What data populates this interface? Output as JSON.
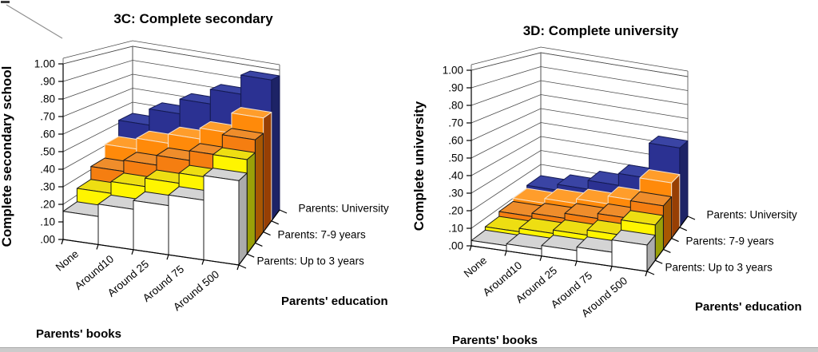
{
  "page": {
    "background": "#ffffff",
    "bottom_strip_color": "#cbcbcb"
  },
  "chart_data": [
    {
      "type": "bar",
      "variant": "3d-column",
      "title": "3C: Complete secondary",
      "ylabel": "Complete secondary school",
      "xlabel": "Parents' books",
      "depth_label": "Parents' education",
      "ylim": [
        0,
        1
      ],
      "grid": true,
      "y_tick_labels": [
        "1.00",
        ".90",
        ".80",
        ".70",
        ".60",
        ".50",
        ".40",
        ".30",
        ".20",
        ".10",
        ".00"
      ],
      "categories": [
        "None",
        "Around10",
        "Around 25",
        "Around 75",
        "Around 500"
      ],
      "series": [
        {
          "name": "Parents: Up to 3 years",
          "axis_label_visible": true,
          "color_front": "#ffffff",
          "color_top": "#d4d4d4",
          "color_side": "#ababab",
          "outline": "#1a1a1a",
          "values": [
            0.16,
            0.23,
            0.28,
            0.34,
            0.48
          ]
        },
        {
          "name": "",
          "axis_label_visible": false,
          "color_front": "#fff500",
          "color_top": "#eede12",
          "color_side": "#9aa008",
          "outline": "#1a1a1a",
          "values": [
            0.24,
            0.31,
            0.36,
            0.42,
            0.56
          ]
        },
        {
          "name": "Parents: 7-9 years",
          "axis_label_visible": true,
          "color_front": "#f57e11",
          "color_top": "#ef8d2b",
          "color_side": "#a85702",
          "outline": "#1a1a1a",
          "values": [
            0.32,
            0.39,
            0.45,
            0.51,
            0.64
          ]
        },
        {
          "name": "",
          "axis_label_visible": false,
          "color_front": "#ff8a0a",
          "color_top": "#ff9d2b",
          "color_side": "#973f04",
          "outline": "#f7e3cc",
          "values": [
            0.41,
            0.48,
            0.54,
            0.61,
            0.74
          ]
        },
        {
          "name": "Parents: University",
          "axis_label_visible": true,
          "color_front": "#2b3192",
          "color_top": "#3a44a4",
          "color_side": "#1d2366",
          "outline": "#141a52",
          "values": [
            0.52,
            0.63,
            0.73,
            0.83,
            0.96
          ]
        }
      ]
    },
    {
      "type": "bar",
      "variant": "3d-column",
      "title": "3D: Complete university",
      "ylabel": "Complete university",
      "xlabel": "Parents' books",
      "depth_label": "Parents' education",
      "ylim": [
        0,
        1
      ],
      "grid": true,
      "y_tick_labels": [
        "1.00",
        ".90",
        ".80",
        ".70",
        ".60",
        ".50",
        ".40",
        ".30",
        ".20",
        ".10",
        ".00"
      ],
      "categories": [
        "None",
        "Around10",
        "Around 25",
        "Around 75",
        "Around 500"
      ],
      "series": [
        {
          "name": "Parents: Up to 3 years",
          "axis_label_visible": true,
          "color_front": "#ffffff",
          "color_top": "#d4d4d4",
          "color_side": "#ababab",
          "outline": "#1a1a1a",
          "values": [
            0.03,
            0.04,
            0.06,
            0.08,
            0.15
          ]
        },
        {
          "name": "",
          "axis_label_visible": false,
          "color_front": "#fff500",
          "color_top": "#eede12",
          "color_side": "#9aa008",
          "outline": "#1a1a1a",
          "values": [
            0.05,
            0.07,
            0.09,
            0.12,
            0.21
          ]
        },
        {
          "name": "Parents: 7-9 years",
          "axis_label_visible": true,
          "color_front": "#f57e11",
          "color_top": "#ef8d2b",
          "color_side": "#a85702",
          "outline": "#1a1a1a",
          "values": [
            0.08,
            0.1,
            0.13,
            0.16,
            0.27
          ]
        },
        {
          "name": "",
          "axis_label_visible": false,
          "color_front": "#ff8a0a",
          "color_top": "#ff9d2b",
          "color_side": "#973f04",
          "outline": "#f7e3cc",
          "values": [
            0.1,
            0.13,
            0.16,
            0.21,
            0.36
          ]
        },
        {
          "name": "Parents: University",
          "axis_label_visible": true,
          "color_front": "#2b3192",
          "color_top": "#3a44a4",
          "color_side": "#1d2366",
          "outline": "#141a52",
          "values": [
            0.12,
            0.16,
            0.22,
            0.3,
            0.54
          ]
        }
      ]
    }
  ]
}
